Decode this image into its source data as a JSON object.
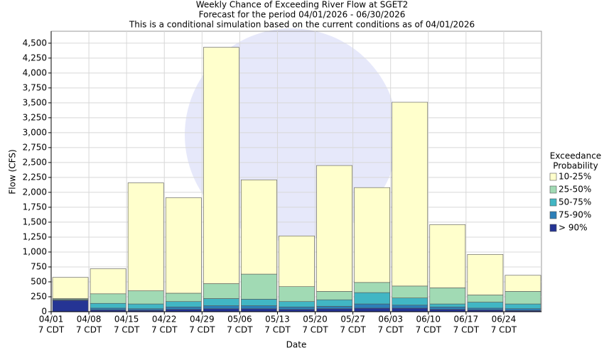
{
  "chart_data": {
    "type": "stacked_bar",
    "title": "Weekly Chance of Exceeding River Flow at SGET2",
    "subtitle": "Forecast for the period 04/01/2026 - 06/30/2026",
    "subtitle2": "This is a conditional simulation based on the current conditions as of 04/01/2026",
    "x_label": "Date",
    "y_label": "Flow (CFS)",
    "legend_title": [
      "Exceedance",
      "Probability"
    ],
    "categories": [
      "04/01",
      "04/08",
      "04/15",
      "04/22",
      "04/29",
      "05/06",
      "05/13",
      "05/20",
      "05/27",
      "06/03",
      "06/10",
      "06/17",
      "06/24"
    ],
    "category_suffix": "7 CDT",
    "series": [
      {
        "name": "> 90%",
        "color": "#253494",
        "values": [
          190,
          30,
          25,
          40,
          50,
          50,
          40,
          50,
          60,
          60,
          40,
          30,
          20
        ]
      },
      {
        "name": "75-90%",
        "color": "#2c7fb8",
        "values": [
          10,
          30,
          25,
          40,
          50,
          50,
          40,
          40,
          70,
          50,
          40,
          30,
          30
        ]
      },
      {
        "name": "50-75%",
        "color": "#41b6c4",
        "values": [
          5,
          80,
          80,
          90,
          120,
          110,
          90,
          110,
          190,
          120,
          50,
          100,
          80
        ]
      },
      {
        "name": "25-50%",
        "color": "#a1dab4",
        "values": [
          15,
          160,
          220,
          140,
          250,
          420,
          250,
          140,
          170,
          200,
          270,
          120,
          210
        ]
      },
      {
        "name": "10-25%",
        "color": "#ffffcc",
        "values": [
          355,
          420,
          1810,
          1600,
          3960,
          1580,
          850,
          2110,
          1590,
          3080,
          1060,
          680,
          270
        ]
      }
    ],
    "ylim": [
      0,
      4700
    ],
    "yticks": [
      0,
      250,
      500,
      750,
      {
        "value": 1000,
        "label": "1,000"
      },
      {
        "value": 1250,
        "label": "1,250"
      },
      {
        "value": 1500,
        "label": "1,500"
      },
      {
        "value": 1750,
        "label": "1,750"
      },
      {
        "value": 2000,
        "label": "2,000"
      },
      {
        "value": 2250,
        "label": "2,250"
      },
      {
        "value": 2500,
        "label": "2,500"
      },
      {
        "value": 2750,
        "label": "2,750"
      },
      {
        "value": 3000,
        "label": "3,000"
      },
      {
        "value": 3250,
        "label": "3,250"
      },
      {
        "value": 3500,
        "label": "3,500"
      },
      {
        "value": 3750,
        "label": "3,750"
      },
      {
        "value": 4000,
        "label": "4,000"
      },
      {
        "value": 4250,
        "label": "4,250"
      },
      {
        "value": 4500,
        "label": "4,500"
      }
    ],
    "grid": true
  }
}
